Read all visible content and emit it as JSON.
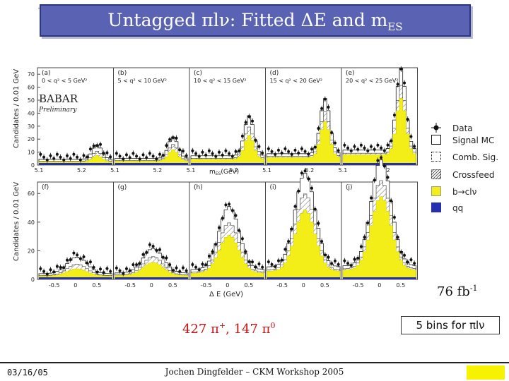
{
  "title": {
    "main": "Untagged πlν: Fitted ΔE and m",
    "sub": "ES"
  },
  "watermark": {
    "babar": "BABAR",
    "preliminary": "Preliminary"
  },
  "top_row": {
    "ylabel": "Candidates / 0.01 GeV",
    "xlabel": "m",
    "xlabel_sub": "ES",
    "xlabel_unit": "(GeV)",
    "yticks": [
      "0",
      "10",
      "20",
      "30",
      "40",
      "50",
      "60",
      "70"
    ],
    "xticks": [
      "5.1",
      "5.2"
    ],
    "panels": [
      {
        "tag": "(a)",
        "range": "0 < q² < 5 GeV²"
      },
      {
        "tag": "(b)",
        "range": "5 < q² < 10 GeV²"
      },
      {
        "tag": "(c)",
        "range": "10 < q² < 15 GeV²"
      },
      {
        "tag": "(d)",
        "range": "15 < q² < 20 GeV²"
      },
      {
        "tag": "(e)",
        "range": "20 < q² < 25 GeV²"
      }
    ]
  },
  "bottom_row": {
    "ylabel": "Candidates / 0.01 GeV",
    "xlabel": "Δ E (GeV)",
    "yticks": [
      "0",
      "20",
      "40",
      "60"
    ],
    "xticks": [
      "-0.5",
      "0",
      "0.5"
    ],
    "panels": [
      {
        "tag": "(f)"
      },
      {
        "tag": "(g)"
      },
      {
        "tag": "(h)"
      },
      {
        "tag": "(i)"
      },
      {
        "tag": "(j)"
      }
    ]
  },
  "legend": [
    {
      "label": "Data",
      "symbol": "data-point-icon"
    },
    {
      "label": "Signal MC",
      "symbol": "open-box-icon"
    },
    {
      "label": "Comb. Sig.",
      "symbol": "dotted-box-icon"
    },
    {
      "label": "Crossfeed",
      "symbol": "hatched-box-icon"
    },
    {
      "label": "b→clν",
      "symbol": "yellow-box-icon"
    },
    {
      "label": "qq",
      "symbol": "blue-box-icon"
    }
  ],
  "colors": {
    "title_bg": "#5a63b3",
    "yellow": "#f3ee18",
    "blue": "#2430b0",
    "red": "#cc1111"
  },
  "luminosity": {
    "value": "76 fb",
    "exp": "-1"
  },
  "bins_note": "5 bins for πlν",
  "counts": {
    "charged": "427 π",
    "charged_sup": "+",
    "sep": ", 147 π",
    "neutral_sup": "0"
  },
  "footer": {
    "date": "03/16/05",
    "center": "Jochen Dingfelder – CKM Workshop 2005"
  }
}
